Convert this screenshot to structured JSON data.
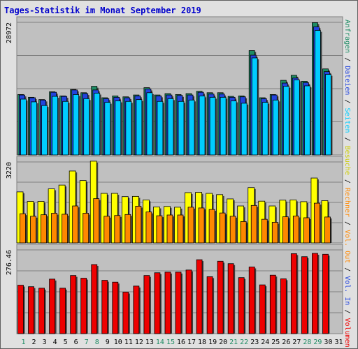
{
  "title": "Tages-Statistik im Monat September 2019",
  "chart_data": [
    {
      "type": "bar",
      "panel": "top",
      "categories": [
        "1",
        "2",
        "3",
        "4",
        "5",
        "6",
        "7",
        "8",
        "9",
        "10",
        "11",
        "12",
        "13",
        "14",
        "15",
        "16",
        "17",
        "18",
        "19",
        "20",
        "21",
        "22",
        "23",
        "24",
        "25",
        "26",
        "27",
        "28",
        "29",
        "30",
        "31"
      ],
      "ylim": [
        0,
        28972
      ],
      "tick_labels": [
        "28972"
      ],
      "series": [
        {
          "name": "Anfragen",
          "color": "#1e8c64",
          "values": [
            13200,
            12600,
            12100,
            13800,
            12900,
            14300,
            13600,
            15000,
            12500,
            12900,
            12700,
            13100,
            14700,
            13100,
            13400,
            13200,
            13400,
            13900,
            13600,
            13600,
            12800,
            12900,
            22800,
            12500,
            13200,
            16300,
            17400,
            16100,
            28900,
            18800,
            null
          ]
        },
        {
          "name": "Dateien",
          "color": "#2244dd",
          "values": [
            13100,
            12500,
            12000,
            13700,
            12800,
            14200,
            13400,
            14200,
            12300,
            12600,
            12500,
            12900,
            14400,
            12900,
            13100,
            13000,
            13100,
            13700,
            13300,
            13300,
            12600,
            12700,
            21800,
            12300,
            13100,
            15700,
            16800,
            15800,
            28000,
            18200,
            null
          ]
        },
        {
          "name": "Seiten",
          "color": "#00ccff",
          "values": [
            12200,
            11600,
            10800,
            12800,
            11700,
            13200,
            12300,
            13500,
            11500,
            11800,
            11700,
            12100,
            13600,
            11700,
            12300,
            11700,
            12000,
            12900,
            12600,
            12600,
            11800,
            11300,
            21200,
            11500,
            12000,
            15000,
            16400,
            15100,
            27200,
            17600,
            null
          ]
        }
      ]
    },
    {
      "type": "bar",
      "panel": "middle",
      "categories": [
        "1",
        "2",
        "3",
        "4",
        "5",
        "6",
        "7",
        "8",
        "9",
        "10",
        "11",
        "12",
        "13",
        "14",
        "15",
        "16",
        "17",
        "18",
        "19",
        "20",
        "21",
        "22",
        "23",
        "24",
        "25",
        "26",
        "27",
        "28",
        "29",
        "30",
        "31"
      ],
      "ylim": [
        0,
        3220
      ],
      "tick_labels": [
        "3220"
      ],
      "series": [
        {
          "name": "Besuche",
          "color": "#ffff00",
          "values": [
            2030,
            1650,
            1650,
            2150,
            2300,
            2860,
            2480,
            3250,
            1970,
            1970,
            1840,
            1850,
            1710,
            1430,
            1450,
            1420,
            2000,
            2010,
            1970,
            1920,
            1750,
            1470,
            2200,
            1660,
            1470,
            1700,
            1710,
            1640,
            2580,
            1680,
            null
          ]
        },
        {
          "name": "Rechner",
          "color": "#ff8800",
          "values": [
            1160,
            1060,
            1120,
            1180,
            1140,
            1470,
            1180,
            1760,
            1060,
            1090,
            1130,
            1460,
            1230,
            1080,
            1110,
            1110,
            1420,
            1390,
            1330,
            1190,
            1060,
            850,
            1490,
            940,
            820,
            1040,
            1070,
            1000,
            1580,
            1030,
            null
          ]
        }
      ]
    },
    {
      "type": "bar",
      "panel": "bottom",
      "categories": [
        "1",
        "2",
        "3",
        "4",
        "5",
        "6",
        "7",
        "8",
        "9",
        "10",
        "11",
        "12",
        "13",
        "14",
        "15",
        "16",
        "17",
        "18",
        "19",
        "20",
        "21",
        "22",
        "23",
        "24",
        "25",
        "26",
        "27",
        "28",
        "29",
        "30",
        "31"
      ],
      "ylim": [
        0,
        276.46
      ],
      "tick_labels": [
        "276.46"
      ],
      "series": [
        {
          "name": "Volumen",
          "color": "#ee0000",
          "values": [
            160,
            155,
            150,
            180,
            150,
            192,
            183,
            228,
            176,
            170,
            137,
            157,
            192,
            201,
            203,
            203,
            210,
            244,
            188,
            239,
            231,
            185,
            220,
            161,
            193,
            181,
            264,
            254,
            265,
            262,
            null
          ]
        }
      ]
    }
  ],
  "legend": {
    "anfragen": "Anfragen",
    "dateien": "Dateien",
    "seiten": "Seiten",
    "besuche": "Besuche",
    "rechner": "Rechner",
    "vol_out": "Vol. Out",
    "vol_in": "Vol. In",
    "volumen": "Volumen",
    "separator": " / "
  },
  "colors": {
    "anfragen": "#1e8c64",
    "dateien": "#2244dd",
    "seiten": "#00ccff",
    "besuche": "#ffff00",
    "besuche_legend": "#cccc00",
    "rechner": "#ff8800",
    "vol_out": "#ff8800",
    "vol_in": "#2244dd",
    "volumen": "#ee0000",
    "weekday_label": "#1e8c64",
    "day_label": "#000000",
    "plot_bg": "#c0c0c0",
    "frame_bg": "#e0e0e0",
    "title": "#0000cc"
  },
  "highlight_days": [
    "1",
    "7",
    "8",
    "14",
    "15",
    "21",
    "22",
    "28",
    "29"
  ]
}
